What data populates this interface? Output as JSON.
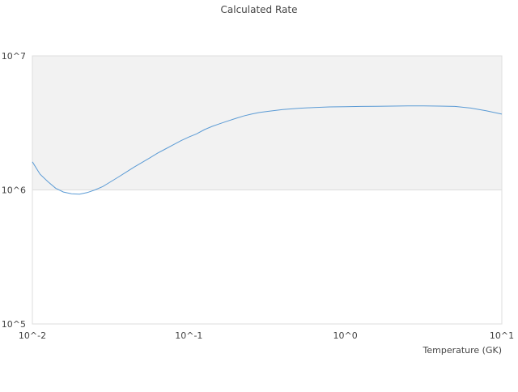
{
  "chart_data": {
    "type": "line",
    "title": "Calculated Rate",
    "xlabel": "Temperature (GK)",
    "ylabel": "",
    "x_scale": "log",
    "y_scale": "log",
    "xlim": [
      0.01,
      10
    ],
    "ylim": [
      100000,
      10000000
    ],
    "x_ticks": [
      {
        "value": 0.01,
        "label": "10^-2"
      },
      {
        "value": 0.1,
        "label": "10^-1"
      },
      {
        "value": 1,
        "label": "10^0"
      },
      {
        "value": 10,
        "label": "10^1"
      }
    ],
    "y_ticks": [
      {
        "value": 100000,
        "label": "10^5"
      },
      {
        "value": 1000000,
        "label": "10^6"
      },
      {
        "value": 10000000,
        "label": "10^7"
      }
    ],
    "grid": false,
    "legend": "none",
    "shaded_band": {
      "y_from": 1000000,
      "y_to": 10000000,
      "color": "#f2f2f2"
    },
    "line_color": "#5b9bd5",
    "series": [
      {
        "x": [
          0.01,
          0.0112,
          0.0126,
          0.0141,
          0.0158,
          0.0178,
          0.02,
          0.0224,
          0.0251,
          0.0282,
          0.0316,
          0.0355,
          0.0398,
          0.0447,
          0.0501,
          0.0562,
          0.0631,
          0.0708,
          0.0794,
          0.0891,
          0.1,
          0.112,
          0.126,
          0.141,
          0.158,
          0.178,
          0.2,
          0.224,
          0.251,
          0.282,
          0.316,
          0.398,
          0.501,
          0.631,
          0.794,
          1.0,
          1.26,
          1.58,
          2.0,
          2.51,
          3.16,
          3.98,
          5.01,
          6.31,
          7.94,
          10.0
        ],
        "y": [
          1620000,
          1310000,
          1150000,
          1030000,
          965000,
          935000,
          930000,
          955000,
          1000000,
          1060000,
          1150000,
          1250000,
          1360000,
          1480000,
          1600000,
          1730000,
          1880000,
          2020000,
          2170000,
          2330000,
          2480000,
          2620000,
          2820000,
          2980000,
          3120000,
          3270000,
          3420000,
          3560000,
          3680000,
          3780000,
          3850000,
          3980000,
          4060000,
          4120000,
          4160000,
          4180000,
          4200000,
          4210000,
          4220000,
          4230000,
          4230000,
          4220000,
          4200000,
          4080000,
          3900000,
          3680000
        ]
      }
    ]
  }
}
